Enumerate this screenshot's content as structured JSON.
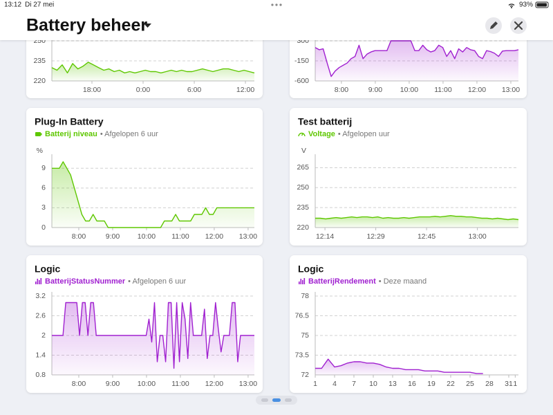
{
  "status_bar": {
    "time": "13:12",
    "date": "Di 27 mei",
    "battery": "93%"
  },
  "header": {
    "title": "Battery beheer"
  },
  "cards": [
    {
      "chart": {
        "type": "line",
        "color": "#5ec700",
        "ylim": [
          220,
          250
        ],
        "yticks": [
          220,
          235,
          250
        ],
        "xticks": [
          "18:00",
          "0:00",
          "6:00",
          "12:00"
        ],
        "values": [
          230,
          228,
          232,
          226,
          233,
          229,
          231,
          234,
          232,
          230,
          228,
          229,
          227,
          228,
          226,
          227,
          226,
          227,
          228,
          227,
          227,
          226,
          227,
          228,
          227,
          228,
          227,
          227,
          228,
          229,
          228,
          227,
          228,
          229,
          229,
          228,
          227,
          228,
          227,
          226
        ]
      }
    },
    {
      "chart": {
        "type": "line",
        "color": "#a020d0",
        "ylim": [
          -600,
          300
        ],
        "yticks": [
          -600,
          -150,
          300
        ],
        "xticks": [
          "8:00",
          "9:00",
          "10:00",
          "11:00",
          "12:00",
          "13:00"
        ],
        "values": [
          150,
          100,
          120,
          -200,
          -500,
          -380,
          -300,
          -250,
          -200,
          -100,
          -50,
          200,
          -100,
          0,
          50,
          80,
          80,
          80,
          80,
          300,
          300,
          300,
          300,
          300,
          300,
          80,
          80,
          200,
          100,
          50,
          80,
          200,
          150,
          -50,
          80,
          -100,
          120,
          50,
          150,
          100,
          80,
          -50,
          -100,
          80,
          60,
          20,
          -50,
          70,
          80,
          80,
          80,
          100
        ]
      }
    },
    {
      "title": "Plug-In Battery",
      "entity": "Batterij niveau",
      "period": "• Afgelopen 6 uur",
      "chart": {
        "type": "line",
        "color": "#5ec700",
        "unit": "%",
        "ylim": [
          0,
          10.5
        ],
        "yticks": [
          0,
          3,
          6,
          9
        ],
        "xticks": [
          "8:00",
          "9:00",
          "10:00",
          "11:00",
          "12:00",
          "13:00"
        ],
        "values": [
          9,
          9,
          9,
          10,
          9,
          8,
          6,
          4,
          2,
          1,
          1,
          2,
          1,
          1,
          1,
          0,
          0,
          0,
          0,
          0,
          0,
          0,
          0,
          0,
          0,
          0,
          0,
          0,
          0,
          0,
          1,
          1,
          1,
          2,
          1,
          1,
          1,
          1,
          2,
          2,
          2,
          3,
          2,
          2,
          3,
          3,
          3,
          3,
          3,
          3,
          3,
          3,
          3,
          3,
          3
        ]
      }
    },
    {
      "title": "Test batterij",
      "entity": "Voltage",
      "period": "• Afgelopen uur",
      "chart": {
        "type": "line",
        "color": "#5ec700",
        "unit": "V",
        "ylim": [
          220,
          272
        ],
        "yticks": [
          220,
          235,
          250,
          265
        ],
        "xticks": [
          "12:14",
          "12:29",
          "12:45",
          "13:00"
        ],
        "values": [
          227,
          227,
          226.5,
          227,
          227.5,
          227,
          227.5,
          228,
          227.5,
          228,
          228,
          227.5,
          228,
          227,
          227.5,
          227,
          227,
          227.5,
          227,
          227.5,
          228,
          228,
          228,
          228.5,
          228,
          228.5,
          229,
          228.5,
          228.5,
          228,
          228,
          227.5,
          227,
          227,
          226.5,
          227,
          226.5,
          226,
          226.5,
          226
        ]
      }
    },
    {
      "title": "Logic",
      "entity": "BatterijStatusNummer",
      "period": "• Afgelopen 6 uur",
      "chart": {
        "type": "line",
        "color": "#a020d0",
        "ylim": [
          0.8,
          3.2
        ],
        "yticks": [
          0.8,
          1.4,
          2,
          2.6,
          3.2
        ],
        "xticks": [
          "8:00",
          "9:00",
          "10:00",
          "11:00",
          "12:00",
          "13:00"
        ],
        "values": [
          2,
          2,
          2,
          2,
          2,
          3,
          3,
          3,
          3,
          3,
          2,
          3,
          3,
          2,
          3,
          3,
          2,
          2,
          2,
          2,
          2,
          2,
          2,
          2,
          2,
          2,
          2,
          2,
          2,
          2,
          2,
          2,
          2,
          2,
          2,
          2.5,
          1.8,
          3,
          1.2,
          2,
          2,
          1.2,
          3,
          3,
          1,
          3,
          1.2,
          3,
          2.5,
          1.3,
          3,
          2,
          2,
          2,
          2,
          2.8,
          1.3,
          2,
          2,
          3,
          2.2,
          1.5,
          2,
          2,
          2,
          3,
          3,
          1.2,
          2,
          2,
          2,
          2,
          2,
          2
        ]
      }
    },
    {
      "title": "Logic",
      "entity": "BatterijRendement",
      "period": "• Deze maand",
      "chart": {
        "type": "line",
        "color": "#a020d0",
        "ylim": [
          72,
          78
        ],
        "yticks": [
          72,
          73.5,
          75,
          76.5,
          78
        ],
        "xlim": [
          1,
          32.5
        ],
        "xticks": [
          1,
          4,
          7,
          10,
          13,
          16,
          19,
          22,
          25,
          28,
          31,
          {
            "value": 32,
            "label": "1"
          }
        ],
        "x": [
          1,
          2,
          3,
          4,
          5,
          6,
          7,
          8,
          9,
          10,
          11,
          12,
          13,
          14,
          15,
          16,
          17,
          18,
          19,
          20,
          21,
          22,
          23,
          24,
          25,
          26,
          27
        ],
        "values": [
          72.5,
          72.5,
          73.2,
          72.6,
          72.7,
          72.9,
          73,
          73,
          72.9,
          72.9,
          72.8,
          72.6,
          72.5,
          72.5,
          72.4,
          72.4,
          72.4,
          72.3,
          72.3,
          72.3,
          72.2,
          72.2,
          72.2,
          72.2,
          72.2,
          72.1,
          72.1
        ]
      }
    }
  ]
}
